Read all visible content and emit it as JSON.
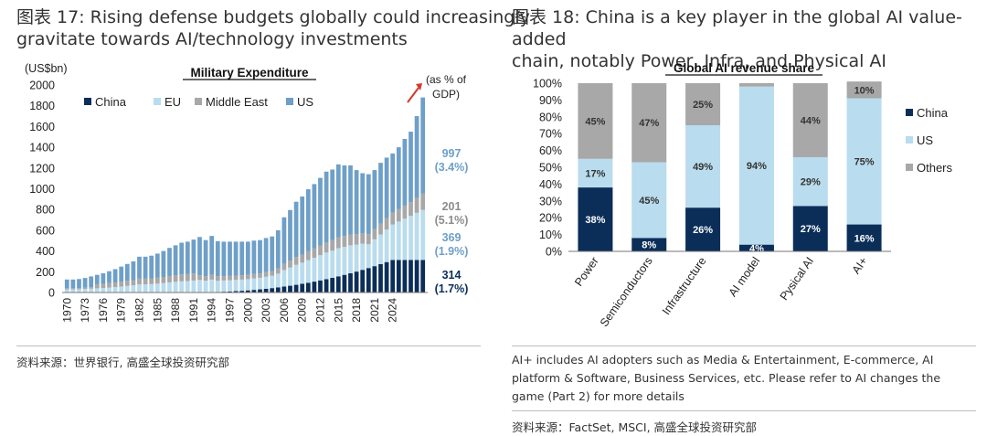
{
  "left": {
    "title_line1": "图表 17: Rising defense budgets globally could increasingly",
    "title_line2": "gravitate towards AI/technology investments",
    "source": "资料来源：世界银行, 高盛全球投资研究部"
  },
  "right": {
    "title_line1": "图表 18: China is a key player in the global AI value-added",
    "title_line2": "chain, notably Power, Infra, and Physical AI",
    "note_line1": "AI+ includes AI adopters such as Media & Entertainment, E-commerce, AI",
    "note_line2": "platform & Software, Business Services, etc. Please refer to AI changes the",
    "note_line3": "game (Part 2) for more details",
    "source": "资料来源：FactSet, MSCI, 高盛全球投资研究部"
  },
  "chart_data": [
    {
      "type": "bar",
      "stacked": true,
      "title": "Military Expenditure",
      "ylabel": "(US$bn)",
      "ylim": [
        0,
        2000
      ],
      "yticks": [
        0,
        200,
        400,
        600,
        800,
        1000,
        1200,
        1400,
        1600,
        1800,
        2000
      ],
      "years_start": 1970,
      "xtick_labels": [
        "1970",
        "1973",
        "1976",
        "1979",
        "1982",
        "1985",
        "1988",
        "1991",
        "1994",
        "1997",
        "2000",
        "2003",
        "2006",
        "2009",
        "2012",
        "2015",
        "2018",
        "2021",
        "2024"
      ],
      "totals": [
        125,
        125,
        130,
        140,
        155,
        170,
        185,
        205,
        225,
        250,
        275,
        300,
        345,
        345,
        355,
        375,
        400,
        430,
        455,
        480,
        490,
        510,
        535,
        505,
        545,
        495,
        490,
        490,
        490,
        490,
        490,
        500,
        505,
        525,
        540,
        600,
        725,
        795,
        875,
        925,
        995,
        1045,
        1105,
        1165,
        1185,
        1235,
        1225,
        1225,
        1180,
        1150,
        1140,
        1180,
        1250,
        1300,
        1340,
        1400,
        1480,
        1550,
        1700,
        1880
      ],
      "series_names": [
        "China",
        "EU",
        "Middle East",
        "US"
      ],
      "series_colors": [
        "#0b2e59",
        "#b9dcee",
        "#a8a8a8",
        "#6e9fc8"
      ],
      "legend": [
        {
          "name": "China",
          "color": "#0b2e59"
        },
        {
          "name": "EU",
          "color": "#b9dcee"
        },
        {
          "name": "Middle East",
          "color": "#a8a8a8"
        },
        {
          "name": "US",
          "color": "#6e9fc8"
        }
      ],
      "annotations": [
        {
          "value": "997",
          "pct": "(3.4%)",
          "color": "#6e9fc8"
        },
        {
          "value": "201",
          "pct": "(5.1%)",
          "color": "#8c8c8c"
        },
        {
          "value": "369",
          "pct": "(1.9%)",
          "color": "#6e9fc8"
        },
        {
          "value": "314",
          "pct": "(1.7%)",
          "color": "#0b2e59"
        }
      ],
      "gdp_note_line1": "(as % of",
      "gdp_note_line2": "GDP)"
    },
    {
      "type": "bar",
      "stacked": true,
      "percent": true,
      "title": "Global AI revenue share",
      "ylim": [
        0,
        100
      ],
      "yticks": [
        "0%",
        "10%",
        "20%",
        "30%",
        "40%",
        "50%",
        "60%",
        "70%",
        "80%",
        "90%",
        "100%"
      ],
      "categories": [
        "Power",
        "Semiconductors",
        "Infrastructure",
        "AI model",
        "Pysical AI",
        "AI+"
      ],
      "series": [
        {
          "name": "China",
          "color": "#0b2e59",
          "values": [
            38,
            8,
            26,
            4,
            27,
            16
          ],
          "labels": [
            "38%",
            "8%",
            "26%",
            "4%",
            "27%",
            "16%"
          ]
        },
        {
          "name": "US",
          "color": "#b9dcee",
          "values": [
            17,
            45,
            49,
            94,
            29,
            75
          ],
          "labels": [
            "17%",
            "45%",
            "49%",
            "94%",
            "29%",
            "75%"
          ]
        },
        {
          "name": "Others",
          "color": "#a8a8a8",
          "values": [
            45,
            47,
            25,
            2,
            44,
            10
          ],
          "labels": [
            "45%",
            "47%",
            "25%",
            "",
            "44%",
            "10%"
          ]
        }
      ]
    }
  ]
}
